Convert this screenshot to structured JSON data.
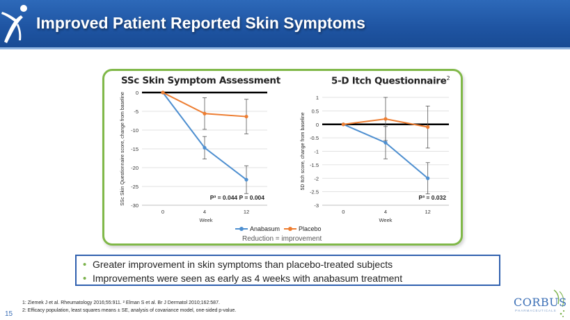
{
  "slide": {
    "title": "Improved Patient Reported Skin Symptoms",
    "number": "15"
  },
  "colors": {
    "anabasum": "#4e8fd0",
    "placebo": "#ed7d31",
    "panel_border": "#80b848",
    "banner": "#2563b0",
    "bullet_border": "#2f5fae"
  },
  "legend": {
    "anabasum": "Anabasum",
    "placebo": "Placebo"
  },
  "caption": "Reduction = improvement",
  "chart_data": [
    {
      "type": "line",
      "title": "SSc Skin Symptom Assessment",
      "title_sup": "",
      "xlabel": "Week",
      "ylabel": "SSc Skin Questionnaire score, change from baseline",
      "categories": [
        "0",
        "4",
        "12"
      ],
      "ylim": [
        -30,
        0
      ],
      "yticks": [
        "0",
        "-5",
        "-10",
        "-15",
        "-20",
        "-25",
        "-30"
      ],
      "ytick_values": [
        0,
        -5,
        -10,
        -15,
        -20,
        -25,
        -30
      ],
      "grid": true,
      "series": [
        {
          "name": "Anabasum",
          "values": [
            0,
            -14.7,
            -23.2
          ],
          "err": [
            0,
            3.0,
            3.7
          ]
        },
        {
          "name": "Placebo",
          "values": [
            0,
            -5.6,
            -6.4
          ],
          "err": [
            0,
            4.2,
            4.6
          ]
        }
      ],
      "annotation": "P³ = 0.044   P = 0.004"
    },
    {
      "type": "line",
      "title": "5-D Itch Questionnaire",
      "title_sup": "2",
      "xlabel": "Week",
      "ylabel": "5D Itch score, change from baseline",
      "categories": [
        "0",
        "4",
        "12"
      ],
      "ylim": [
        -3,
        1
      ],
      "yticks": [
        "1",
        "0.5",
        "0",
        "-0.5",
        "-1",
        "-1.5",
        "-2",
        "-2.5",
        "-3"
      ],
      "ytick_values": [
        1,
        0.5,
        0,
        -0.5,
        -1,
        -1.5,
        -2,
        -2.5,
        -3
      ],
      "grid": true,
      "series": [
        {
          "name": "Anabasum",
          "values": [
            0,
            -0.68,
            -2.0
          ],
          "err": [
            0,
            0.6,
            0.58
          ]
        },
        {
          "name": "Placebo",
          "values": [
            0,
            0.2,
            -0.1
          ],
          "err": [
            0,
            0.8,
            0.78
          ]
        }
      ],
      "annotation": "P³ = 0.032"
    }
  ],
  "bullets": [
    "Greater improvement in skin symptoms than placebo-treated subjects",
    "Improvements were seen as early as 4 weeks with anabasum treatment"
  ],
  "footnotes": {
    "line1": "1: Ziemek J et al. Rheumatology 2016;55:911. ² Elman S et al. Br J Dermatol 2010;162:587.",
    "line2": "2: Efficacy population, least squares means ± SE, analysis of covariance model, one-sided p-value."
  },
  "logo": {
    "name": "CORBUS",
    "subtitle": "PHARMACEUTICALS"
  }
}
